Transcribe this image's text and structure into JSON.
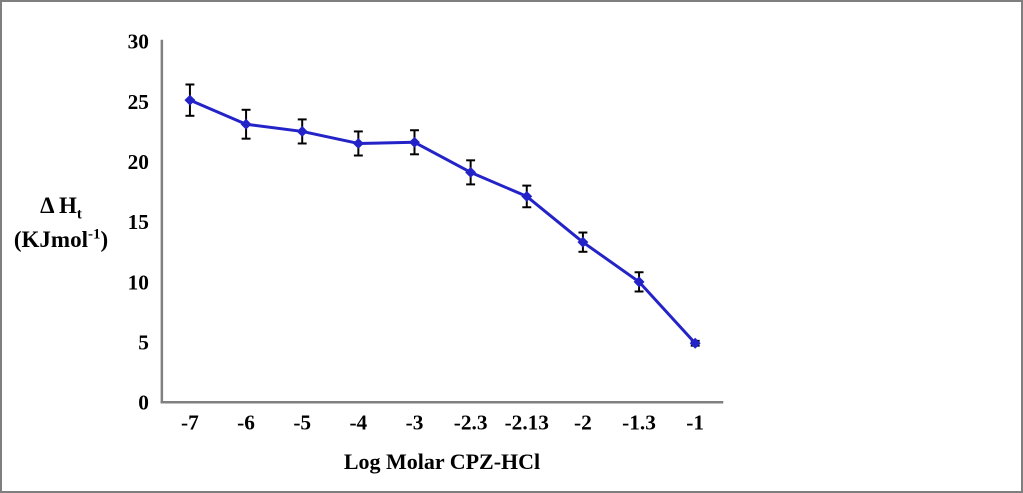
{
  "chart_data": {
    "type": "line",
    "title": "",
    "xlabel": "Log Molar CPZ-HCl",
    "ylabel": {
      "line1_main": "Δ H",
      "line1_sub": "t",
      "line2_open": "(KJmol",
      "line2_sup": "-1",
      "line2_close": ")"
    },
    "categories": [
      "-7",
      "-6",
      "-5",
      "-4",
      "-3",
      "-2.3",
      "-2.13",
      "-2",
      "-1.3",
      "-1"
    ],
    "series": [
      {
        "name": "ΔHt",
        "values": [
          25.1,
          23.1,
          22.5,
          21.5,
          21.6,
          19.1,
          17.1,
          13.3,
          10.0,
          4.9
        ],
        "error_bars": [
          1.3,
          1.2,
          1.0,
          1.0,
          1.0,
          1.0,
          0.9,
          0.8,
          0.8,
          0.2
        ]
      }
    ],
    "yticks": [
      0,
      5,
      10,
      15,
      20,
      25,
      30
    ],
    "ylim": [
      0,
      30
    ],
    "grid": false,
    "legend_position": "none",
    "marker": "diamond",
    "line_color": "#2323C8",
    "error_bar_color": "#000000",
    "axis_color": "#808080",
    "text_color": "#000000"
  }
}
